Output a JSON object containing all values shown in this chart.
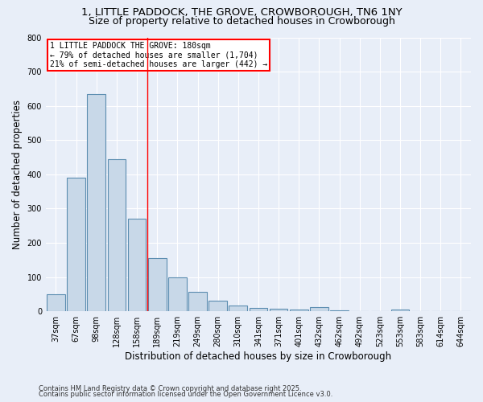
{
  "title1": "1, LITTLE PADDOCK, THE GROVE, CROWBOROUGH, TN6 1NY",
  "title2": "Size of property relative to detached houses in Crowborough",
  "xlabel": "Distribution of detached houses by size in Crowborough",
  "ylabel": "Number of detached properties",
  "categories": [
    "37sqm",
    "67sqm",
    "98sqm",
    "128sqm",
    "158sqm",
    "189sqm",
    "219sqm",
    "249sqm",
    "280sqm",
    "310sqm",
    "341sqm",
    "371sqm",
    "401sqm",
    "432sqm",
    "462sqm",
    "492sqm",
    "523sqm",
    "553sqm",
    "583sqm",
    "614sqm",
    "644sqm"
  ],
  "values": [
    50,
    390,
    635,
    445,
    270,
    155,
    100,
    57,
    30,
    18,
    10,
    8,
    5,
    12,
    3,
    0,
    0,
    5,
    0,
    0,
    0
  ],
  "bar_color": "#c8d8e8",
  "bar_edge_color": "#5b8db0",
  "bar_edge_width": 0.8,
  "red_line_index": 5,
  "annotation_lines": [
    "1 LITTLE PADDOCK THE GROVE: 180sqm",
    "← 79% of detached houses are smaller (1,704)",
    "21% of semi-detached houses are larger (442) →"
  ],
  "annotation_box_color": "white",
  "annotation_box_edge_color": "red",
  "ylim": [
    0,
    800
  ],
  "yticks": [
    0,
    100,
    200,
    300,
    400,
    500,
    600,
    700,
    800
  ],
  "background_color": "#e8eef8",
  "grid_color": "white",
  "footer1": "Contains HM Land Registry data © Crown copyright and database right 2025.",
  "footer2": "Contains public sector information licensed under the Open Government Licence v3.0.",
  "title1_fontsize": 9.5,
  "title2_fontsize": 9.0,
  "axis_label_fontsize": 8.5,
  "tick_fontsize": 7.0,
  "annot_fontsize": 7.0,
  "footer_fontsize": 6.0
}
